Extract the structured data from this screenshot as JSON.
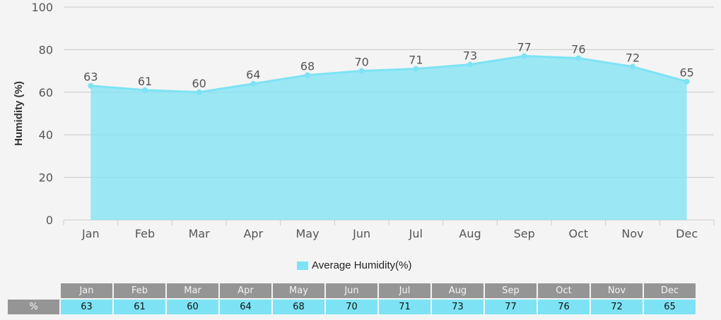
{
  "chart_data": {
    "type": "area",
    "categories": [
      "Jan",
      "Feb",
      "Mar",
      "Apr",
      "May",
      "Jun",
      "Jul",
      "Aug",
      "Sep",
      "Oct",
      "Nov",
      "Dec"
    ],
    "series": [
      {
        "name": "Average Humidity(%)",
        "values": [
          63,
          61,
          60,
          64,
          68,
          70,
          71,
          73,
          77,
          76,
          72,
          65
        ]
      }
    ],
    "ylabel": "Humidity (%)",
    "ylim": [
      0,
      100
    ],
    "yticks": [
      0,
      20,
      40,
      60,
      80,
      100
    ],
    "grid": true,
    "legend": "bottom",
    "color": "#7de3f4"
  },
  "table": {
    "row_label": "%"
  }
}
